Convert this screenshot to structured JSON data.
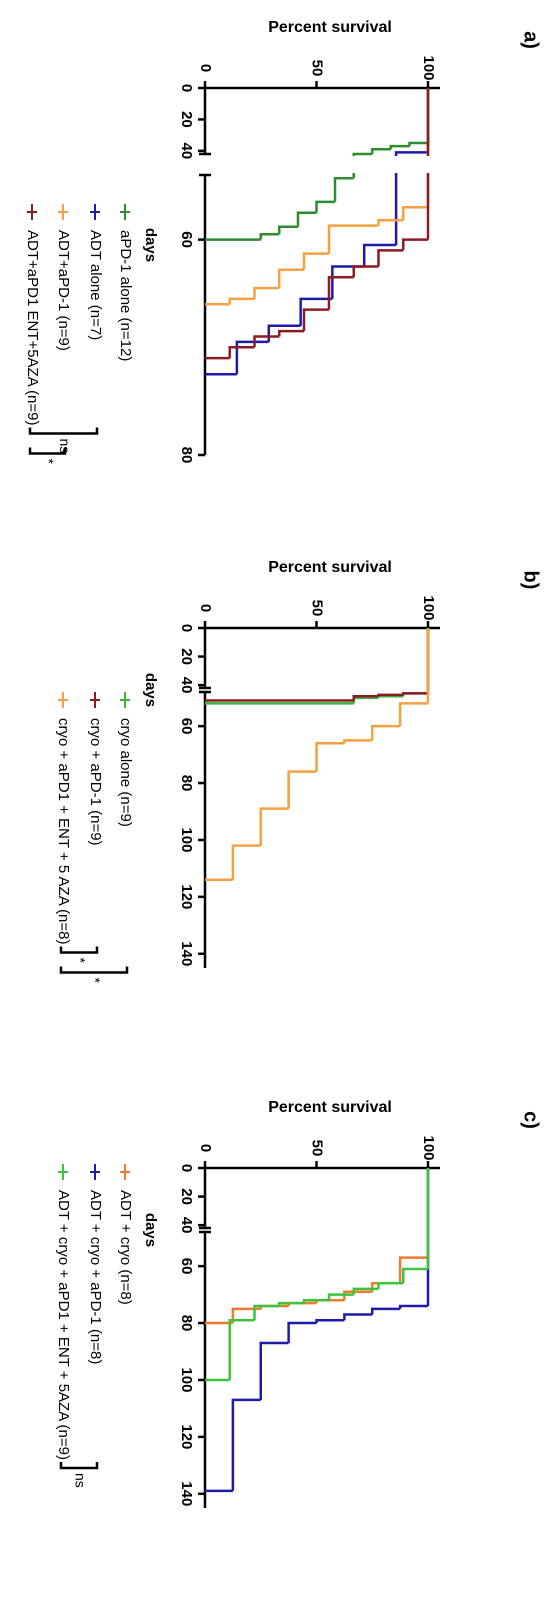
{
  "chart_data": [
    {
      "type": "line",
      "step": true,
      "title": "a)",
      "ylabel": "Percent survival",
      "xlabel": "days",
      "xlim": [
        0,
        80
      ],
      "axis_break": [
        42,
        54
      ],
      "xticks": [
        0,
        20,
        40,
        60,
        80
      ],
      "ylim": [
        0,
        100
      ],
      "yticks": [
        0,
        50,
        100
      ],
      "series": [
        {
          "name": "aPD-1 alone (n=12)",
          "color": "#2e8b2e",
          "x": [
            0,
            35,
            37,
            39,
            42,
            54.3,
            56.5,
            57.5,
            58.8,
            59.5,
            60
          ],
          "values": [
            100,
            91.7,
            83.3,
            75,
            66.7,
            58.3,
            50,
            41.7,
            33.3,
            25,
            0
          ]
        },
        {
          "name": "ADT alone (n=7)",
          "color": "#1c1ca8",
          "x": [
            0,
            41,
            60.5,
            62.5,
            65.5,
            68,
            69.5,
            72.5
          ],
          "values": [
            100,
            85.7,
            71.4,
            57.1,
            42.9,
            28.6,
            14.3,
            0
          ]
        },
        {
          "name": "ADT+aPD-1 (n=9)",
          "color": "#f5a142",
          "x": [
            0,
            57,
            58.2,
            58.7,
            61.3,
            62.8,
            64.5,
            65.5,
            66
          ],
          "values": [
            100,
            88.9,
            77.8,
            55.6,
            44.4,
            33.3,
            22.2,
            11.1,
            0
          ]
        },
        {
          "name": "ADT+aPD1 ENT+5AZA (n=9)",
          "color": "#8b1c24",
          "x": [
            0,
            60,
            61,
            62.5,
            63.5,
            66.5,
            68.5,
            69,
            70,
            71
          ],
          "values": [
            100,
            88.9,
            77.8,
            66.7,
            55.6,
            44.4,
            33.3,
            22.2,
            11.1,
            0
          ]
        }
      ],
      "significance": [
        "ns",
        "*"
      ]
    },
    {
      "type": "line",
      "step": true,
      "title": "b)",
      "ylabel": "Percent survival",
      "xlabel": "days",
      "xlim": [
        0,
        145
      ],
      "axis_break": [
        42,
        48
      ],
      "xticks": [
        0,
        20,
        40,
        60,
        80,
        100,
        120,
        140
      ],
      "ylim": [
        0,
        100
      ],
      "yticks": [
        0,
        50,
        100
      ],
      "series": [
        {
          "name": "cryo alone (n=9)",
          "color": "#3cb43c",
          "x": [
            0,
            48.5,
            49.5,
            50,
            52
          ],
          "values": [
            100,
            88.9,
            77.8,
            66.7,
            0
          ]
        },
        {
          "name": "cryo + aPD-1 (n=9)",
          "color": "#8b1c24",
          "x": [
            0,
            48.5,
            49,
            49.5,
            51
          ],
          "values": [
            100,
            88.9,
            77.8,
            66.7,
            0
          ]
        },
        {
          "name": "cryo + aPD1 + ENT + 5 AZA (n=8)",
          "color": "#f5a142",
          "x": [
            0,
            52,
            60,
            65,
            66,
            76,
            89,
            102,
            114
          ],
          "values": [
            100,
            87.5,
            75,
            62.5,
            50,
            37.5,
            25,
            12.5,
            0
          ]
        }
      ],
      "significance": [
        "*",
        "*"
      ]
    },
    {
      "type": "line",
      "step": true,
      "title": "c)",
      "ylabel": "Percent survival",
      "xlabel": "days",
      "xlim": [
        0,
        145
      ],
      "axis_break": [
        42,
        48
      ],
      "xticks": [
        0,
        20,
        40,
        60,
        80,
        100,
        120,
        140
      ],
      "ylim": [
        0,
        100
      ],
      "yticks": [
        0,
        50,
        100
      ],
      "series": [
        {
          "name": "ADT + cryo (n=8)",
          "color": "#f07a2e",
          "x": [
            0,
            57,
            66,
            69,
            72,
            73,
            74,
            75,
            80
          ],
          "values": [
            100,
            87.5,
            75,
            62.5,
            50,
            37.5,
            25,
            12.5,
            0
          ]
        },
        {
          "name": "ADT + cryo + aPD-1 (n=8)",
          "color": "#1c1ca8",
          "x": [
            0,
            74,
            75,
            77,
            79,
            80,
            87,
            107,
            139
          ],
          "values": [
            100,
            87.5,
            75,
            62.5,
            50,
            37.5,
            25,
            12.5,
            0
          ]
        },
        {
          "name": "ADT + cryo + aPD1 + ENT + 5AZA (n=9)",
          "color": "#3cc43c",
          "x": [
            0,
            61,
            66,
            68,
            70,
            72,
            73,
            74,
            79,
            100
          ],
          "values": [
            100,
            88.9,
            77.8,
            66.7,
            55.6,
            44.4,
            33.3,
            22.2,
            11.1,
            0
          ]
        }
      ],
      "significance": [
        "ns"
      ]
    }
  ]
}
